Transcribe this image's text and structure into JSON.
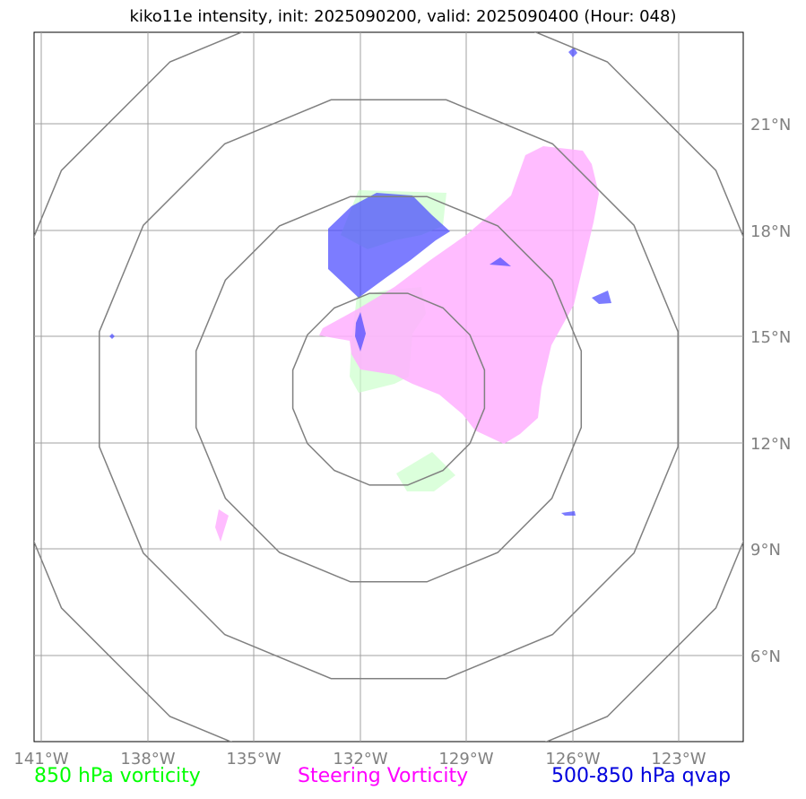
{
  "title": "kiko11e intensity, init: 2025090200, valid: 2025090400 (Hour: 048)",
  "map": {
    "lon_ticks": [
      "141°W",
      "138°W",
      "135°W",
      "132°W",
      "129°W",
      "126°W",
      "123°W"
    ],
    "lat_ticks": [
      "21°N",
      "18°N",
      "15°N",
      "12°N",
      "9°N",
      "6°N"
    ],
    "extent": {
      "lon_min": -141,
      "lon_max": -121,
      "lat_min": 3.7,
      "lat_max": 23.5
    },
    "range_rings_center": {
      "lon": -131,
      "lat": 14
    }
  },
  "legend": {
    "vorticity_850": {
      "label": "850 hPa vorticity",
      "color": "#00ff00"
    },
    "steering_vorticity": {
      "label": "Steering Vorticity",
      "color": "#ff00ff"
    },
    "qvap_500_850": {
      "label": "500-850 hPa qvap",
      "color": "#0000dd"
    }
  }
}
